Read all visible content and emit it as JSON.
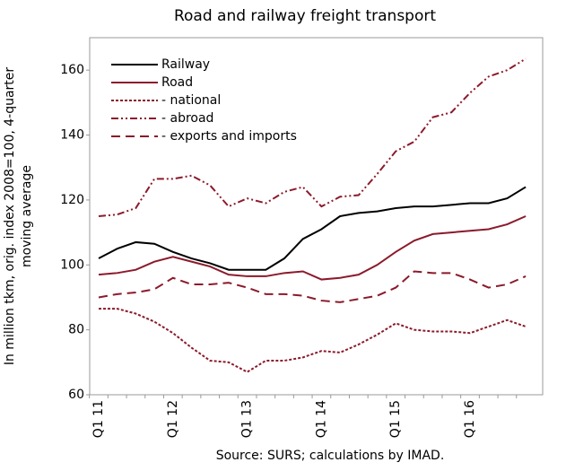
{
  "chart_data": {
    "type": "line",
    "title": "Road and railway freight transport",
    "ylabel": [
      "In million tkm, orig. index 2008=100, 4-quarter",
      "moving average"
    ],
    "source": "Source: SURS; calculations by IMAD.",
    "categories": [
      "Q1 11",
      null,
      null,
      null,
      "Q1 12",
      null,
      null,
      null,
      "Q1 13",
      null,
      null,
      null,
      "Q1 14",
      null,
      null,
      null,
      "Q1 15",
      null,
      null,
      null,
      "Q1 16",
      null,
      null,
      null
    ],
    "ylim": [
      60,
      170
    ],
    "yticks": [
      60,
      80,
      100,
      120,
      140,
      160
    ],
    "legend": "top-left",
    "series": [
      {
        "name": "Railway",
        "color": "#000000",
        "style": "solid",
        "values": [
          102,
          105,
          107,
          106.5,
          104,
          102,
          100.5,
          98.5,
          98.5,
          98.5,
          102,
          108,
          111,
          115,
          116,
          116.5,
          117.5,
          118,
          118,
          118.5,
          119,
          119,
          120.5,
          124
        ]
      },
      {
        "name": "Road",
        "color": "#8b1a2b",
        "style": "solid",
        "values": [
          97,
          97.5,
          98.5,
          101,
          102.5,
          101,
          99.5,
          97,
          96.5,
          96.5,
          97.5,
          98,
          95.5,
          96,
          97,
          100,
          104,
          107.5,
          109.5,
          110,
          110.5,
          111,
          112.5,
          115
        ]
      },
      {
        "name": "- national",
        "color": "#8b1a2b",
        "style": "dotted",
        "values": [
          86.5,
          86.5,
          85,
          82.5,
          79,
          74.5,
          70.5,
          70,
          67,
          70.5,
          70.5,
          71.5,
          73.5,
          73,
          75.5,
          78.5,
          82,
          80,
          79.5,
          79.5,
          79,
          81,
          83,
          81
        ]
      },
      {
        "name": "- abroad",
        "color": "#8b1a2b",
        "style": "dashdotdot",
        "values": [
          115,
          115.5,
          117.5,
          126.5,
          126.5,
          127.5,
          124.5,
          118,
          120.5,
          119,
          122.5,
          124,
          118,
          121,
          121.5,
          128,
          135,
          138,
          145.5,
          147,
          153,
          158,
          160,
          163.5
        ]
      },
      {
        "name": "- exports and imports",
        "color": "#8b1a2b",
        "style": "dashed",
        "values": [
          90,
          91,
          91.5,
          92.5,
          96,
          94,
          94,
          94.5,
          93,
          91,
          91,
          90.5,
          89,
          88.5,
          89.5,
          90.5,
          93,
          98,
          97.5,
          97.5,
          95.5,
          93,
          94,
          96.5
        ]
      }
    ]
  }
}
